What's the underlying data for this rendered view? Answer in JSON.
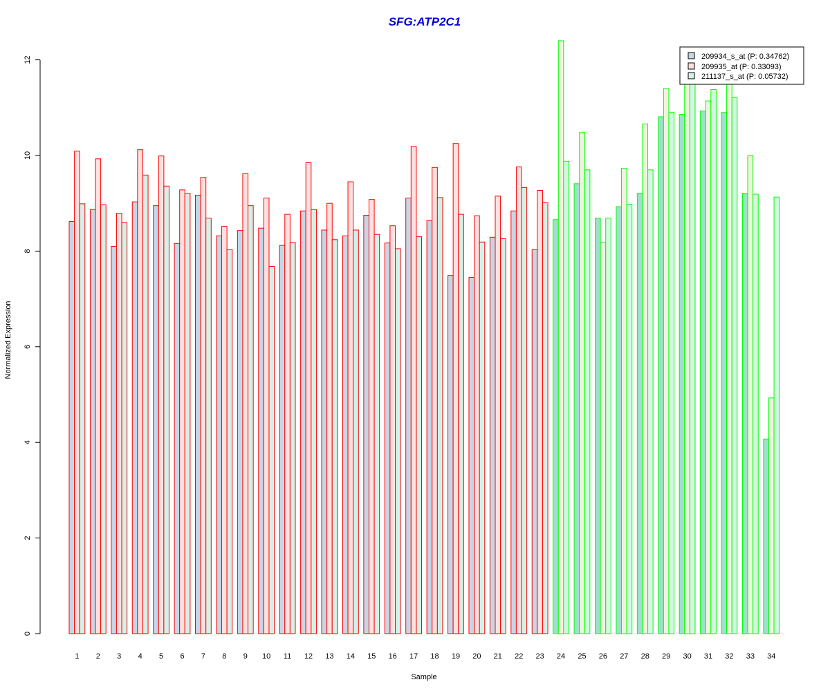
{
  "chart_data": {
    "type": "bar",
    "title": "SFG:ATP2C1",
    "xlabel": "Sample",
    "ylabel": "Normalized Expression",
    "ylim": [
      0,
      12.4
    ],
    "yticks": [
      "0",
      "2",
      "4",
      "6",
      "8",
      "10",
      "12"
    ],
    "grid": false,
    "legend_position": "top-right",
    "categories": [
      "1",
      "2",
      "3",
      "4",
      "5",
      "6",
      "7",
      "8",
      "9",
      "10",
      "11",
      "12",
      "13",
      "14",
      "15",
      "16",
      "17",
      "18",
      "19",
      "20",
      "21",
      "22",
      "23",
      "24",
      "25",
      "26",
      "27",
      "28",
      "29",
      "30",
      "31",
      "32",
      "33",
      "34"
    ],
    "series": [
      {
        "name": "209934_s_at (P: 0.34762)",
        "fill_color": "#c6d6e6",
        "values": [
          8.62,
          8.87,
          8.1,
          9.03,
          8.95,
          8.16,
          9.17,
          8.32,
          8.43,
          8.48,
          8.12,
          8.84,
          8.44,
          8.32,
          8.75,
          8.17,
          9.11,
          8.64,
          7.49,
          7.45,
          8.29,
          8.84,
          8.03,
          8.66,
          9.41,
          8.69,
          8.93,
          9.21,
          10.81,
          10.86,
          10.93,
          10.9,
          9.21,
          4.07
        ]
      },
      {
        "name": "209935_at (P: 0.33093)",
        "fill_color": "#fde0e0",
        "values": [
          10.09,
          9.93,
          8.79,
          10.12,
          9.99,
          9.28,
          9.54,
          8.52,
          9.62,
          9.11,
          8.77,
          9.85,
          9.0,
          9.45,
          9.08,
          8.53,
          10.19,
          9.75,
          10.25,
          8.74,
          9.15,
          9.76,
          9.27,
          12.4,
          10.48,
          8.18,
          9.73,
          10.66,
          11.4,
          11.58,
          11.14,
          11.58,
          10.0,
          4.93
        ]
      },
      {
        "name": "211137_s_at (P: 0.05732)",
        "fill_color": "#d4f0e8",
        "values": [
          8.99,
          8.97,
          8.6,
          9.59,
          9.36,
          9.21,
          8.69,
          8.03,
          8.95,
          7.68,
          8.18,
          8.87,
          8.24,
          8.44,
          8.35,
          8.05,
          8.3,
          9.12,
          8.77,
          8.19,
          8.26,
          9.33,
          9.01,
          9.88,
          9.7,
          8.69,
          8.98,
          9.7,
          10.9,
          11.5,
          11.38,
          11.21,
          9.19,
          9.13
        ]
      }
    ],
    "group_colors": {
      "group1_samples": "1-23",
      "group1_border": "#ff0000",
      "group2_samples": "24-34",
      "group2_border": "#00ff00",
      "group2_fill_series1": "#9fe0cc",
      "group2_fill_series2": "#eef5dc",
      "group2_fill_series3": "#d4f7e4"
    },
    "colors": {
      "title": "#0000cc",
      "axis": "#000000"
    }
  }
}
